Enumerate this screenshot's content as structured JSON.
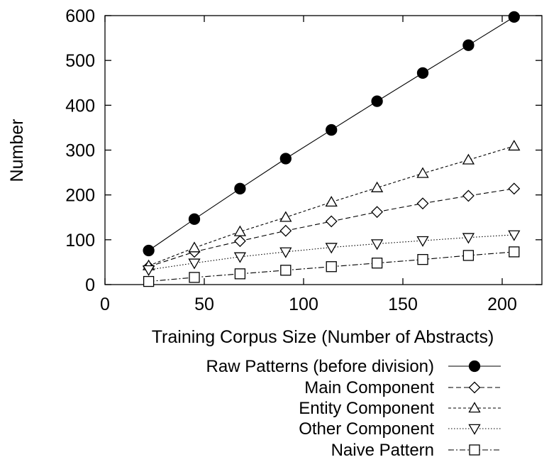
{
  "chart_data": {
    "type": "line",
    "xlabel": "Training Corpus Size (Number of Abstracts)",
    "ylabel": "Number",
    "xlim": [
      0,
      220
    ],
    "ylim": [
      0,
      600
    ],
    "xticks": [
      0,
      50,
      100,
      150,
      200
    ],
    "yticks": [
      0,
      100,
      200,
      300,
      400,
      500,
      600
    ],
    "grid": false,
    "legend_position": "below",
    "x": [
      22,
      45,
      68,
      91,
      114,
      137,
      160,
      183,
      206
    ],
    "series": [
      {
        "name": "Raw Patterns (before division)",
        "marker": "filled-circle",
        "dash": "solid",
        "values": [
          76,
          146,
          214,
          281,
          345,
          409,
          472,
          534,
          597
        ]
      },
      {
        "name": "Main Component",
        "marker": "diamond",
        "dash": "dashed",
        "values": [
          40,
          73,
          97,
          120,
          141,
          162,
          181,
          198,
          214
        ]
      },
      {
        "name": "Entity Component",
        "marker": "triangle-up",
        "dash": "short-dashed",
        "values": [
          42,
          82,
          118,
          150,
          184,
          216,
          248,
          278,
          309
        ]
      },
      {
        "name": "Other Component",
        "marker": "triangle-down",
        "dash": "dotted",
        "values": [
          33,
          48,
          62,
          73,
          83,
          91,
          98,
          105,
          111
        ]
      },
      {
        "name": "Naive Pattern",
        "marker": "square",
        "dash": "dash-dot",
        "values": [
          7,
          16,
          24,
          32,
          40,
          48,
          56,
          65,
          73
        ]
      }
    ]
  }
}
